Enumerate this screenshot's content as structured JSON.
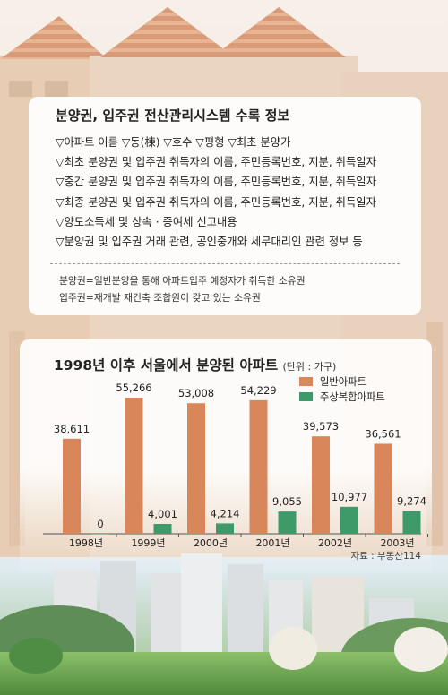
{
  "info": {
    "title": "분양권, 입주권 전산관리시스템 수록 정보",
    "items": [
      "▽아파트 이름 ▽동(棟) ▽호수 ▽평형 ▽최초 분양가",
      "▽최초 분양권 및 입주권 취득자의 이름, 주민등록번호, 지분, 취득일자",
      "▽중간 분양권 및 입주권 취득자의 이름, 주민등록번호, 지분, 취득일자",
      "▽최종 분양권 및 입주권 취득자의 이름, 주민등록번호, 지분, 취득일자",
      "▽양도소득세 및 상속 · 증여세 신고내용",
      "▽분양권 및 입주권 거래 관련, 공인중개와 세무대리인 관련 정보 등"
    ],
    "definitions": [
      "분양권=일반분양을 통해 아파트입주 예정자가 취득한 소유권",
      "입주권=재개발 재건축 조합원이 갖고 있는 소유권"
    ]
  },
  "chart_data": {
    "type": "bar",
    "title": "1998년 이후 서울에서 분양된 아파트",
    "unit": "(단위 : 가구)",
    "categories": [
      "1998년",
      "1999년",
      "2000년",
      "2001년",
      "2002년",
      "2003년"
    ],
    "series": [
      {
        "name": "일반아파트",
        "values": [
          38611,
          55266,
          53008,
          54229,
          39573,
          36561
        ],
        "color": "#d9875a"
      },
      {
        "name": "주상복합아파트",
        "values": [
          0,
          4001,
          4214,
          9055,
          10977,
          9274
        ],
        "color": "#3f9a6a"
      }
    ],
    "value_labels": [
      [
        "38,611",
        "55,266",
        "53,008",
        "54,229",
        "39,573",
        "36,561"
      ],
      [
        "0",
        "4,001",
        "4,214",
        "9,055",
        "10,977",
        "9,274"
      ]
    ],
    "ylim": [
      0,
      56000
    ],
    "source": "자료 : 부동산114"
  }
}
